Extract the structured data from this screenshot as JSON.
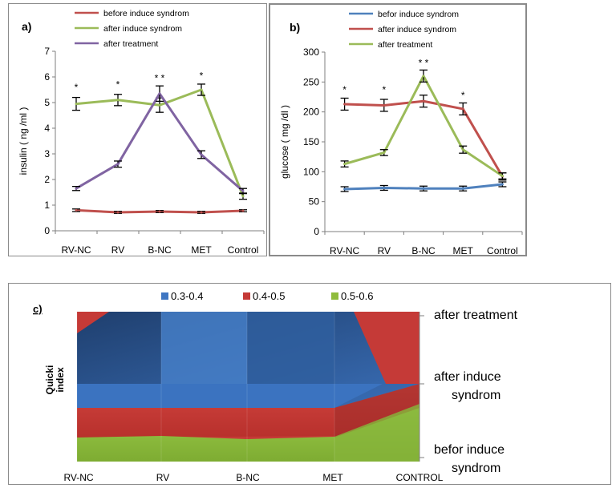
{
  "charts": {
    "a": {
      "panel_label": "a)",
      "type": "line",
      "ylabel": "insulin ( ng /ml )",
      "ylim": [
        0,
        7
      ],
      "yticks": [
        "0",
        "1",
        "2",
        "3",
        "4",
        "5",
        "6",
        "7"
      ],
      "categories": [
        "RV-NC",
        "RV",
        "B-NC",
        "MET",
        "Control"
      ],
      "series": [
        {
          "name": "before induce syndrom",
          "color": "#c0504d",
          "values": [
            0.8,
            0.72,
            0.75,
            0.72,
            0.78
          ],
          "errors": [
            0.05,
            0.04,
            0.04,
            0.04,
            0.04
          ]
        },
        {
          "name": "after induce syndrom",
          "color": "#9bbb59",
          "values": [
            4.95,
            5.1,
            4.9,
            5.5,
            1.35
          ],
          "errors": [
            0.25,
            0.22,
            0.28,
            0.22,
            0.12
          ]
        },
        {
          "name": "after treatment",
          "color": "#8064a2",
          "values": [
            1.65,
            2.6,
            5.35,
            2.97,
            1.55
          ],
          "errors": [
            0.08,
            0.12,
            0.3,
            0.15,
            0.1
          ]
        }
      ],
      "annotations": [
        {
          "category": "RV-NC",
          "text": "*",
          "y": 5.6
        },
        {
          "category": "RV",
          "text": "*",
          "y": 5.7
        },
        {
          "category": "B-NC",
          "text": "* *",
          "y": 5.95
        },
        {
          "category": "MET",
          "text": "*",
          "y": 6.05
        }
      ]
    },
    "b": {
      "panel_label": "b)",
      "type": "line",
      "ylabel": "glucose ( mg /dl )",
      "ylim": [
        0,
        300
      ],
      "yticks": [
        "0",
        "50",
        "100",
        "150",
        "200",
        "250",
        "300"
      ],
      "categories": [
        "RV-NC",
        "RV",
        "B-NC",
        "MET",
        "Control"
      ],
      "series": [
        {
          "name": "befor induce syndrom",
          "color": "#4f81bd",
          "values": [
            71,
            73,
            72,
            72,
            79
          ],
          "errors": [
            4,
            4,
            4,
            4,
            4
          ]
        },
        {
          "name": "after induce syndrom",
          "color": "#c0504d",
          "values": [
            213,
            211,
            218,
            205,
            92
          ],
          "errors": [
            10,
            10,
            10,
            10,
            6
          ]
        },
        {
          "name": "after treatment",
          "color": "#9bbb59",
          "values": [
            113,
            132,
            260,
            137,
            93
          ],
          "errors": [
            5,
            5,
            10,
            6,
            5
          ]
        }
      ],
      "annotations": [
        {
          "category": "RV-NC",
          "text": "*",
          "y": 237
        },
        {
          "category": "RV",
          "text": "*",
          "y": 237
        },
        {
          "category": "B-NC",
          "text": "* *",
          "y": 282
        },
        {
          "category": "MET",
          "text": "*",
          "y": 228
        }
      ]
    },
    "c": {
      "panel_label": "c)",
      "type": "area",
      "ylabel": "Quicki index",
      "categories": [
        "RV-NC",
        "RV",
        "B-NC",
        "MET",
        "CONTROL"
      ],
      "rows": [
        "befor induce syndrom",
        "after induce syndrom",
        "after treatment"
      ],
      "legend": [
        {
          "name": "0.3-0.4",
          "color": "#3f76c2"
        },
        {
          "name": "0.4-0.5",
          "color": "#c53a37"
        },
        {
          "name": "0.5-0.6",
          "color": "#8fbc3c"
        }
      ]
    }
  }
}
